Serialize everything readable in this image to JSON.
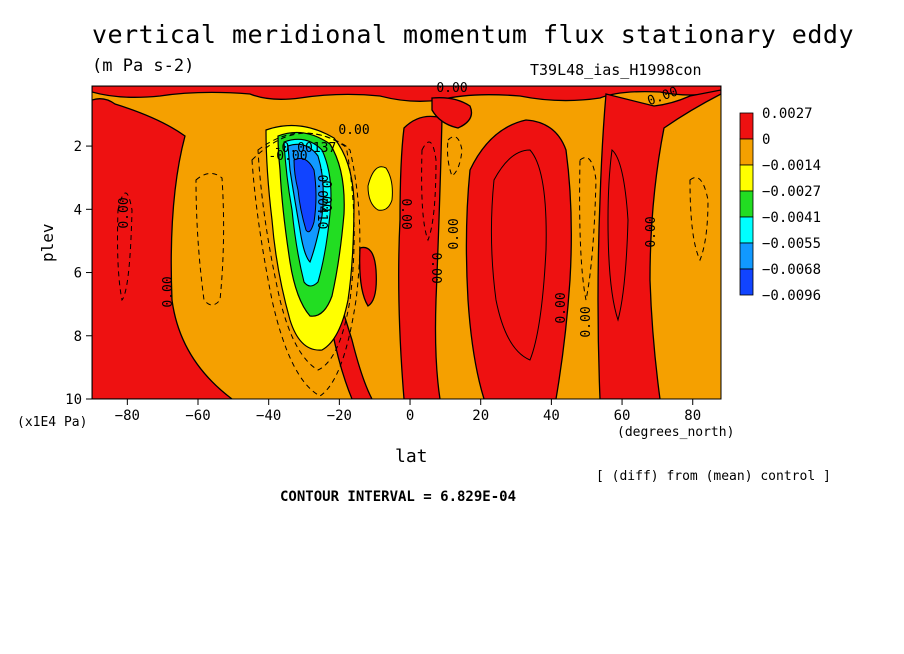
{
  "chart_data": {
    "type": "filled-contour",
    "title": "vertical meridional momentum flux stationary eddy",
    "units": "(m Pa s-2)",
    "run_id": "T39L48_ias_H1998con",
    "xlabel": "lat",
    "xunits": "(degrees_north)",
    "ylabel": "plev",
    "yunits": "(x1E4 Pa)",
    "x_ticks": [
      -80,
      -60,
      -40,
      -20,
      0,
      20,
      40,
      60,
      80
    ],
    "y_ticks": [
      2,
      4,
      6,
      8,
      10
    ],
    "xlim": [
      -90,
      88
    ],
    "ylim": [
      10,
      0.1
    ],
    "y_inverted": true,
    "note": "[ (diff) from (mean) control ]",
    "contour_interval": "CONTOUR INTERVAL = 6.829E-04",
    "colorbar": {
      "levels": [
        "0.0027",
        "0",
        "-0.0014",
        "-0.0027",
        "-0.0041",
        "-0.0055",
        "-0.0068",
        "-0.0096"
      ],
      "colors": [
        "#ee1111",
        "#f5a000",
        "#ffff00",
        "#22dd22",
        "#00ffff",
        "#1199ff",
        "#1144ff"
      ]
    },
    "contour_labels": [
      "0.00",
      "0.00",
      "0.00",
      "0.00",
      "0.00",
      "0.00",
      "0.00",
      "0.00",
      "0.00",
      "0.00",
      "0.00",
      "0.00",
      "-0.00137",
      "-0.00",
      "-0.00410"
    ],
    "regions": [
      {
        "name": "negative core",
        "lat_range": [
          -36,
          -18
        ],
        "plev_range": [
          1.5,
          8.5
        ],
        "min": -0.0096
      },
      {
        "name": "positive bands",
        "lats": [
          -80,
          -16,
          5,
          35,
          70
        ]
      }
    ]
  }
}
